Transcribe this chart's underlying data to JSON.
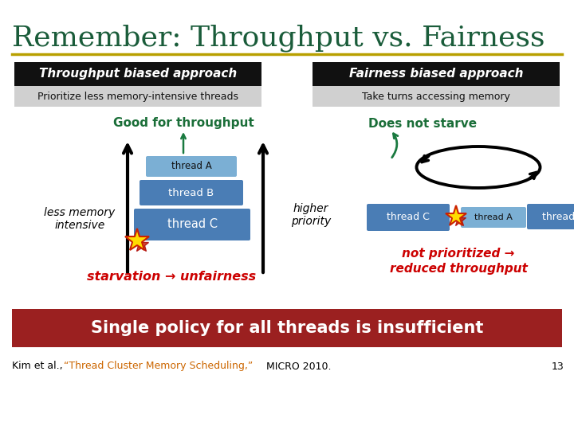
{
  "title": "Remember: Throughput vs. Fairness",
  "title_color": "#1a5c3a",
  "title_fontsize": 26,
  "bg_color": "#ffffff",
  "gold_line_color": "#b8a000",
  "left_box_title": "Throughput biased approach",
  "right_box_title": "Fairness biased approach",
  "left_box_subtitle": "Prioritize less memory-intensive threads",
  "right_box_subtitle": "Take turns accessing memory",
  "box_title_bg": "#111111",
  "box_title_color": "#ffffff",
  "box_subtitle_bg": "#d0d0d0",
  "box_subtitle_color": "#111111",
  "good_throughput_text": "Good for throughput",
  "does_not_starve_text": "Does not starve",
  "green_text_color": "#1a6e38",
  "less_memory_text": "less memory\nintensive",
  "higher_priority_text": "higher\npriority",
  "starvation_text": "starvation → unfairness",
  "not_prioritized_text": "not prioritized →\nreduced throughput",
  "red_text_color": "#cc0000",
  "thread_a_color": "#7bafd4",
  "thread_bc_color": "#4a7db5",
  "thread_text_color": "#ffffff",
  "thread_a_text_color": "#111111",
  "bottom_banner_bg": "#9b2020",
  "bottom_banner_text": "Single policy for all threads is insufficient",
  "bottom_banner_text_color": "#ffffff",
  "footer_prefix": "Kim et al., ",
  "footer_link": "“Thread Cluster Memory Scheduling,”",
  "footer_suffix": " MICRO 2010.",
  "footer_link_color": "#cc6600",
  "page_num": "13",
  "arrow_color": "#000000",
  "teal_arrow_color": "#1a7a40"
}
